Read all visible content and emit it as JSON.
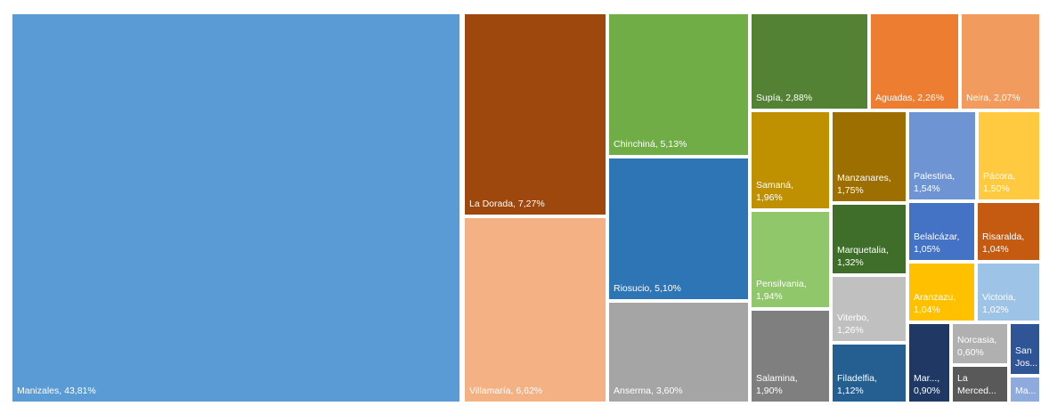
{
  "chart_data": {
    "type": "treemap",
    "title": "",
    "items": [
      {
        "name": "Manizales",
        "value_label": "43,81%",
        "value": 43.81,
        "color": "#5b9bd5",
        "one_line": true
      },
      {
        "name": "La Dorada",
        "value_label": "7,27%",
        "value": 7.27,
        "color": "#9e480e",
        "one_line": true
      },
      {
        "name": "Villamaría",
        "value_label": "6,62%",
        "value": 6.62,
        "color": "#f4b183",
        "one_line": true
      },
      {
        "name": "Chinchiná",
        "value_label": "5,13%",
        "value": 5.13,
        "color": "#70ad47",
        "one_line": true
      },
      {
        "name": "Riosucio",
        "value_label": "5,10%",
        "value": 5.1,
        "color": "#2e75b6",
        "one_line": true
      },
      {
        "name": "Anserma",
        "value_label": "3,60%",
        "value": 3.6,
        "color": "#a5a5a5",
        "one_line": true
      },
      {
        "name": "Supía",
        "value_label": "2,88%",
        "value": 2.88,
        "color": "#548235",
        "one_line": true
      },
      {
        "name": "Aguadas",
        "value_label": "2,26%",
        "value": 2.26,
        "color": "#ed7d31",
        "one_line": true
      },
      {
        "name": "Neira",
        "value_label": "2,07%",
        "value": 2.07,
        "color": "#f19b5f",
        "one_line": true
      },
      {
        "name": "Samaná",
        "value_label": "1,96%",
        "value": 1.96,
        "color": "#bf9000",
        "one_line": false
      },
      {
        "name": "Pensilvania",
        "value_label": "1,94%",
        "value": 1.94,
        "color": "#8fc76a",
        "one_line": false
      },
      {
        "name": "Salamina",
        "value_label": "1,90%",
        "value": 1.9,
        "color": "#7f7f7f",
        "one_line": false
      },
      {
        "name": "Manzanares",
        "value_label": "1,75%",
        "value": 1.75,
        "color": "#9c6f00",
        "one_line": false
      },
      {
        "name": "Marquetalia",
        "value_label": "1,32%",
        "value": 1.32,
        "color": "#3f6e2a",
        "one_line": false
      },
      {
        "name": "Viterbo",
        "value_label": "1,26%",
        "value": 1.26,
        "color": "#c0c0c0",
        "one_line": false
      },
      {
        "name": "Filadelfia",
        "value_label": "1,12%",
        "value": 1.12,
        "color": "#255e91",
        "one_line": false
      },
      {
        "name": "Palestina",
        "value_label": "1,54%",
        "value": 1.54,
        "color": "#6f94d4",
        "one_line": false
      },
      {
        "name": "Pácora",
        "value_label": "1,50%",
        "value": 1.5,
        "color": "#ffc940",
        "one_line": false
      },
      {
        "name": "Belalcázar",
        "value_label": "1,05%",
        "value": 1.05,
        "color": "#4472c4",
        "one_line": false
      },
      {
        "name": "Risaralda",
        "value_label": "1,04%",
        "value": 1.04,
        "color": "#c55a11",
        "one_line": false
      },
      {
        "name": "Aranzazu",
        "value_label": "1,04%",
        "value": 1.04,
        "color": "#ffc000",
        "one_line": false
      },
      {
        "name": "Victoria",
        "value_label": "1,02%",
        "value": 1.02,
        "color": "#9dc3e6",
        "one_line": false
      },
      {
        "name": "Mar...",
        "value_label": "0,90%",
        "value": 0.9,
        "color": "#203864",
        "one_line": false
      },
      {
        "name": "Norcasia",
        "value_label": "0,60%",
        "value": 0.6,
        "color": "#b0b0b0",
        "one_line": false
      },
      {
        "name": "La Merced...",
        "value_label": "",
        "value": null,
        "color": "#595959",
        "one_line": false
      },
      {
        "name": "San Jos...",
        "value_label": "",
        "value": null,
        "color": "#2f5597",
        "one_line": false
      },
      {
        "name": "Ma...",
        "value_label": "",
        "value": null,
        "color": "#8faadc",
        "one_line": false
      }
    ]
  }
}
